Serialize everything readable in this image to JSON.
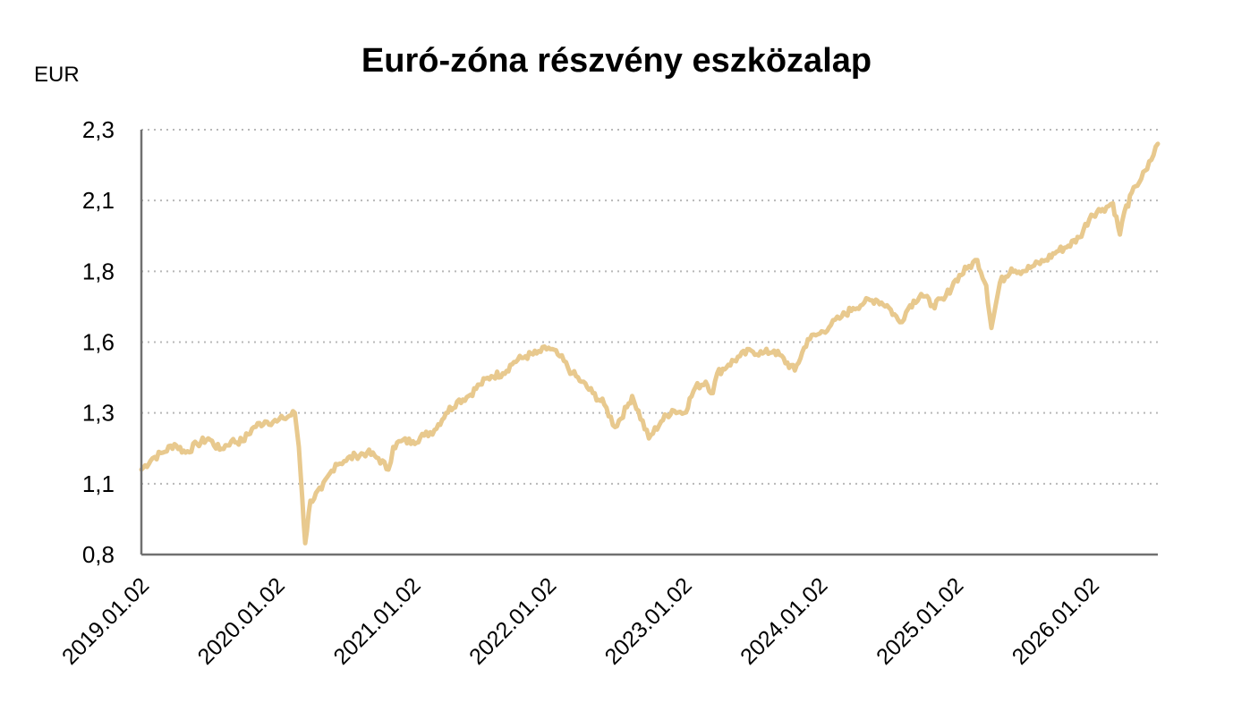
{
  "chart_data": {
    "type": "line",
    "title": "Euró-zóna részvény eszközalap",
    "ylabel": "EUR",
    "xlabel": "",
    "y_ticks": [
      "2,3",
      "2,1",
      "1,8",
      "1,6",
      "1,3",
      "1,1",
      "0,8"
    ],
    "x_ticks": [
      "2019.01.02",
      "2020.01.02",
      "2021.01.02",
      "2022.01.02",
      "2023.01.02",
      "2024.01.02",
      "2025.01.02",
      "2026.01.02"
    ],
    "ylim": [
      0.8,
      2.3
    ],
    "xlim": [
      "2019-01-02",
      "2026-06-30"
    ],
    "grid": true,
    "line_color": "#E8C98E",
    "series": [
      {
        "name": "",
        "x": [
          "2019-01-02",
          "2019-02-01",
          "2019-03-01",
          "2019-04-01",
          "2019-05-01",
          "2019-06-01",
          "2019-07-01",
          "2019-08-01",
          "2019-09-01",
          "2019-10-01",
          "2019-11-01",
          "2019-12-01",
          "2020-01-02",
          "2020-01-20",
          "2020-02-19",
          "2020-03-01",
          "2020-03-10",
          "2020-03-18",
          "2020-04-01",
          "2020-05-01",
          "2020-06-08",
          "2020-07-01",
          "2020-08-01",
          "2020-09-01",
          "2020-10-01",
          "2020-10-28",
          "2020-11-10",
          "2020-12-01",
          "2021-01-02",
          "2021-02-01",
          "2021-03-01",
          "2021-04-01",
          "2021-05-01",
          "2021-06-01",
          "2021-07-01",
          "2021-08-01",
          "2021-09-01",
          "2021-10-01",
          "2021-11-01",
          "2021-12-01",
          "2022-01-02",
          "2022-02-01",
          "2022-03-07",
          "2022-04-01",
          "2022-05-01",
          "2022-06-01",
          "2022-06-30",
          "2022-08-01",
          "2022-08-15",
          "2022-09-29",
          "2022-11-01",
          "2022-12-01",
          "2023-01-02",
          "2023-02-01",
          "2023-03-01",
          "2023-03-20",
          "2023-04-01",
          "2023-05-01",
          "2023-06-01",
          "2023-07-01",
          "2023-08-01",
          "2023-09-01",
          "2023-10-27",
          "2023-12-01",
          "2024-01-02",
          "2024-02-01",
          "2024-03-01",
          "2024-04-01",
          "2024-05-01",
          "2024-06-01",
          "2024-07-01",
          "2024-08-05",
          "2024-09-01",
          "2024-10-01",
          "2024-11-01",
          "2024-12-01",
          "2025-01-02",
          "2025-02-01",
          "2025-03-01",
          "2025-03-25",
          "2025-04-08",
          "2025-05-01",
          "2025-06-01",
          "2025-07-01",
          "2025-08-01",
          "2025-09-01",
          "2025-10-01",
          "2025-11-01",
          "2025-12-01",
          "2026-01-02",
          "2026-02-01",
          "2026-03-01",
          "2026-03-20",
          "2026-04-01",
          "2026-05-01",
          "2026-06-01",
          "2026-06-30"
        ],
        "y": [
          1.1,
          1.14,
          1.16,
          1.19,
          1.16,
          1.19,
          1.21,
          1.17,
          1.2,
          1.2,
          1.25,
          1.27,
          1.27,
          1.28,
          1.3,
          1.18,
          1.0,
          0.84,
          0.99,
          1.03,
          1.12,
          1.13,
          1.15,
          1.16,
          1.14,
          1.1,
          1.18,
          1.2,
          1.2,
          1.22,
          1.24,
          1.3,
          1.34,
          1.36,
          1.4,
          1.43,
          1.44,
          1.48,
          1.5,
          1.51,
          1.53,
          1.5,
          1.44,
          1.41,
          1.37,
          1.33,
          1.25,
          1.32,
          1.36,
          1.21,
          1.27,
          1.31,
          1.3,
          1.39,
          1.41,
          1.37,
          1.44,
          1.47,
          1.5,
          1.52,
          1.51,
          1.52,
          1.45,
          1.56,
          1.58,
          1.61,
          1.64,
          1.67,
          1.69,
          1.7,
          1.68,
          1.62,
          1.68,
          1.72,
          1.68,
          1.7,
          1.77,
          1.81,
          1.84,
          1.75,
          1.6,
          1.76,
          1.81,
          1.8,
          1.82,
          1.84,
          1.87,
          1.89,
          1.92,
          2.0,
          2.02,
          2.04,
          1.93,
          2.01,
          2.1,
          2.16,
          2.25
        ]
      }
    ]
  }
}
